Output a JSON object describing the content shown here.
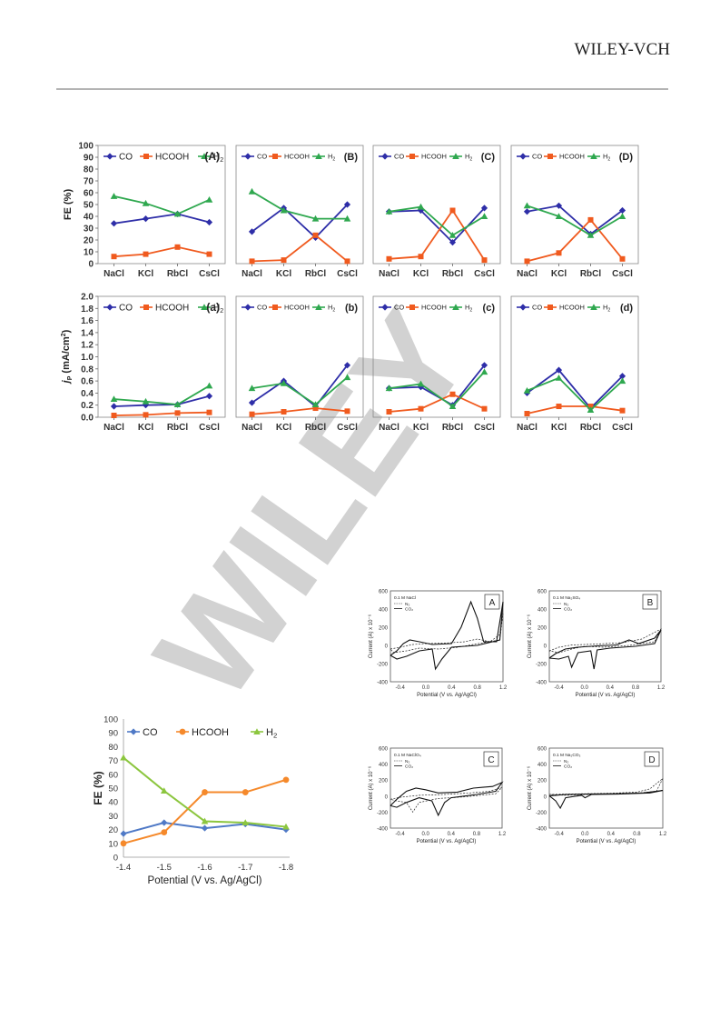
{
  "header": {
    "brand": "WILEY-VCH"
  },
  "watermark": {
    "text": "WILEY",
    "color": "#d2d2d2"
  },
  "colors": {
    "co": "#2e2ea8",
    "hcooh": "#f05a1e",
    "h2": "#2fa84f",
    "co_b": "#4f79c6",
    "hcooh_b": "#f5892b",
    "h2_b": "#8cc63f"
  },
  "chart_data": [
    {
      "type": "line",
      "id": "fe_salts",
      "categories": [
        "NaCl",
        "KCl",
        "RbCl",
        "CsCl"
      ],
      "ylabel": "FE (%)",
      "yticks": [
        "0",
        "10",
        "20",
        "30",
        "40",
        "50",
        "60",
        "70",
        "80",
        "90",
        "100"
      ],
      "ylim": [
        0,
        100
      ],
      "panels": [
        {
          "label": "(A)",
          "legend": [
            "CO",
            "HCOOH",
            "H2"
          ],
          "series": [
            {
              "name": "CO",
              "values": [
                34,
                38,
                42,
                35
              ]
            },
            {
              "name": "HCOOH",
              "values": [
                6,
                8,
                14,
                8
              ]
            },
            {
              "name": "H2",
              "values": [
                57,
                51,
                42,
                54
              ]
            }
          ]
        },
        {
          "label": "(B)",
          "legend": [
            "CO",
            "HCOOH",
            "H2"
          ],
          "series": [
            {
              "name": "CO",
              "values": [
                27,
                47,
                22,
                50
              ]
            },
            {
              "name": "HCOOH",
              "values": [
                2,
                3,
                24,
                2
              ]
            },
            {
              "name": "H2",
              "values": [
                61,
                45,
                38,
                38
              ]
            }
          ]
        },
        {
          "label": "(C)",
          "legend": [
            "CO",
            "HCOOH",
            "H2"
          ],
          "series": [
            {
              "name": "CO",
              "values": [
                44,
                45,
                18,
                47
              ]
            },
            {
              "name": "HCOOH",
              "values": [
                4,
                6,
                45,
                3
              ]
            },
            {
              "name": "H2",
              "values": [
                44,
                48,
                24,
                40
              ]
            }
          ]
        },
        {
          "label": "(D)",
          "legend": [
            "CO",
            "HCOOH",
            "H2"
          ],
          "series": [
            {
              "name": "CO",
              "values": [
                44,
                49,
                25,
                45
              ]
            },
            {
              "name": "HCOOH",
              "values": [
                2,
                9,
                37,
                4
              ]
            },
            {
              "name": "H2",
              "values": [
                49,
                40,
                24,
                40
              ]
            }
          ]
        }
      ]
    },
    {
      "type": "line",
      "id": "jp_salts",
      "categories": [
        "NaCl",
        "KCl",
        "RbCl",
        "CsCl"
      ],
      "ylabel_main": "j",
      "ylabel_sub": "P",
      "ylabel_rest": " (mA/cm",
      "ylabel_sup": "2",
      "ylabel_end": ")",
      "yticks": [
        "0.0",
        "0.2",
        "0.4",
        "0.6",
        "0.8",
        "1.0",
        "1.2",
        "1.4",
        "1.6",
        "1.8",
        "2.0"
      ],
      "ylim": [
        0,
        2.0
      ],
      "panels": [
        {
          "label": "(a)",
          "legend": [
            "CO",
            "HCOOH",
            "H2"
          ],
          "series": [
            {
              "name": "CO",
              "values": [
                0.18,
                0.2,
                0.21,
                0.35
              ]
            },
            {
              "name": "HCOOH",
              "values": [
                0.03,
                0.04,
                0.07,
                0.08
              ]
            },
            {
              "name": "H2",
              "values": [
                0.3,
                0.26,
                0.21,
                0.52
              ]
            }
          ]
        },
        {
          "label": "(b)",
          "legend": [
            "CO",
            "HCOOH",
            "H2"
          ],
          "series": [
            {
              "name": "CO",
              "values": [
                0.24,
                0.6,
                0.18,
                0.86
              ]
            },
            {
              "name": "HCOOH",
              "values": [
                0.05,
                0.09,
                0.15,
                0.1
              ]
            },
            {
              "name": "H2",
              "values": [
                0.48,
                0.56,
                0.21,
                0.66
              ]
            }
          ]
        },
        {
          "label": "(c)",
          "legend": [
            "CO",
            "HCOOH",
            "H2"
          ],
          "series": [
            {
              "name": "CO",
              "values": [
                0.48,
                0.5,
                0.2,
                0.86
              ]
            },
            {
              "name": "HCOOH",
              "values": [
                0.09,
                0.14,
                0.38,
                0.14
              ]
            },
            {
              "name": "H2",
              "values": [
                0.48,
                0.55,
                0.18,
                0.75
              ]
            }
          ]
        },
        {
          "label": "(d)",
          "legend": [
            "CO",
            "HCOOH",
            "H2"
          ],
          "series": [
            {
              "name": "CO",
              "values": [
                0.4,
                0.78,
                0.15,
                0.68
              ]
            },
            {
              "name": "HCOOH",
              "values": [
                0.06,
                0.18,
                0.18,
                0.11
              ]
            },
            {
              "name": "H2",
              "values": [
                0.44,
                0.65,
                0.12,
                0.6
              ]
            }
          ]
        }
      ]
    },
    {
      "type": "line",
      "id": "fe_potential",
      "x": [
        -1.4,
        -1.5,
        -1.6,
        -1.7,
        -1.8
      ],
      "xticks": [
        "-1.4",
        "-1.5",
        "-1.6",
        "-1.7",
        "-1.8"
      ],
      "xlabel": "Potential (V vs. Ag/AgCl)",
      "ylabel": "FE (%)",
      "yticks": [
        "0",
        "10",
        "20",
        "30",
        "40",
        "50",
        "60",
        "70",
        "80",
        "90",
        "100"
      ],
      "ylim": [
        0,
        100
      ],
      "legend": [
        "CO",
        "HCOOH",
        "H2"
      ],
      "series": [
        {
          "name": "CO",
          "values": [
            17,
            25,
            21,
            24,
            20
          ]
        },
        {
          "name": "HCOOH",
          "values": [
            10,
            18,
            47,
            47,
            56
          ]
        },
        {
          "name": "H2",
          "values": [
            72,
            48,
            26,
            25,
            22
          ]
        }
      ]
    },
    {
      "type": "line",
      "id": "cv",
      "xlabel": "Potential (V vs. Ag/AgCl)",
      "ylabel": "Current (A) x 10⁻⁶",
      "xticks": [
        "-0.4",
        "0.0",
        "0.4",
        "0.8",
        "1.2"
      ],
      "xlim": [
        -0.55,
        1.2
      ],
      "yticks": [
        "-400",
        "-200",
        "0",
        "200",
        "400",
        "600"
      ],
      "ylim": [
        -400,
        600
      ],
      "legend_lines": [
        "N₂",
        "CO₂"
      ],
      "panels": [
        {
          "label": "A",
          "electrolyte": "0.1 M NaCl",
          "n2": [
            [
              -0.55,
              -40
            ],
            [
              -0.4,
              -20
            ],
            [
              -0.2,
              10
            ],
            [
              0.0,
              20
            ],
            [
              0.3,
              25
            ],
            [
              0.6,
              40
            ],
            [
              0.8,
              70
            ],
            [
              1.0,
              40
            ],
            [
              1.15,
              120
            ],
            [
              1.2,
              350
            ],
            [
              1.15,
              60
            ],
            [
              0.9,
              30
            ],
            [
              0.5,
              -20
            ],
            [
              0.2,
              -40
            ],
            [
              -0.1,
              -30
            ],
            [
              -0.3,
              -60
            ],
            [
              -0.5,
              -80
            ],
            [
              -0.55,
              -40
            ]
          ],
          "co2": [
            [
              -0.55,
              -110
            ],
            [
              -0.45,
              -60
            ],
            [
              -0.35,
              20
            ],
            [
              -0.25,
              60
            ],
            [
              -0.1,
              40
            ],
            [
              0.1,
              10
            ],
            [
              0.4,
              20
            ],
            [
              0.55,
              200
            ],
            [
              0.7,
              480
            ],
            [
              0.8,
              300
            ],
            [
              0.9,
              40
            ],
            [
              1.1,
              40
            ],
            [
              1.2,
              480
            ],
            [
              1.15,
              60
            ],
            [
              0.8,
              0
            ],
            [
              0.4,
              -20
            ],
            [
              0.25,
              -150
            ],
            [
              0.15,
              -260
            ],
            [
              0.1,
              -40
            ],
            [
              -0.1,
              -60
            ],
            [
              -0.3,
              -120
            ],
            [
              -0.45,
              -150
            ],
            [
              -0.55,
              -110
            ]
          ]
        },
        {
          "label": "B",
          "electrolyte": "0.1 M Na₂SO₄",
          "n2": [
            [
              -0.55,
              -60
            ],
            [
              -0.4,
              -20
            ],
            [
              -0.2,
              5
            ],
            [
              0.2,
              15
            ],
            [
              0.6,
              30
            ],
            [
              0.9,
              70
            ],
            [
              1.2,
              180
            ],
            [
              1.1,
              40
            ],
            [
              0.7,
              0
            ],
            [
              0.3,
              -20
            ],
            [
              0.0,
              -10
            ],
            [
              -0.2,
              -40
            ],
            [
              -0.4,
              -80
            ],
            [
              -0.55,
              -60
            ]
          ],
          "co2": [
            [
              -0.55,
              -140
            ],
            [
              -0.45,
              -90
            ],
            [
              -0.3,
              -40
            ],
            [
              -0.1,
              -20
            ],
            [
              0.2,
              -5
            ],
            [
              0.5,
              5
            ],
            [
              0.7,
              60
            ],
            [
              0.85,
              20
            ],
            [
              1.1,
              80
            ],
            [
              1.2,
              170
            ],
            [
              1.1,
              20
            ],
            [
              0.8,
              -10
            ],
            [
              0.4,
              -30
            ],
            [
              0.2,
              -50
            ],
            [
              0.15,
              -260
            ],
            [
              0.1,
              -60
            ],
            [
              -0.1,
              -80
            ],
            [
              -0.2,
              -240
            ],
            [
              -0.25,
              -120
            ],
            [
              -0.4,
              -150
            ],
            [
              -0.55,
              -140
            ]
          ]
        },
        {
          "label": "C",
          "electrolyte": "0.1 M NaClO₄",
          "n2": [
            [
              -0.55,
              -40
            ],
            [
              -0.4,
              -15
            ],
            [
              -0.1,
              10
            ],
            [
              0.3,
              20
            ],
            [
              0.7,
              40
            ],
            [
              1.0,
              60
            ],
            [
              1.2,
              110
            ],
            [
              1.1,
              30
            ],
            [
              0.6,
              -10
            ],
            [
              0.2,
              -30
            ],
            [
              -0.1,
              -80
            ],
            [
              -0.2,
              -200
            ],
            [
              -0.3,
              -80
            ],
            [
              -0.45,
              -60
            ],
            [
              -0.55,
              -40
            ]
          ],
          "co2": [
            [
              -0.55,
              -120
            ],
            [
              -0.45,
              -40
            ],
            [
              -0.3,
              60
            ],
            [
              -0.15,
              100
            ],
            [
              0.0,
              80
            ],
            [
              0.2,
              40
            ],
            [
              0.5,
              50
            ],
            [
              0.75,
              100
            ],
            [
              0.9,
              110
            ],
            [
              1.05,
              120
            ],
            [
              1.2,
              170
            ],
            [
              1.1,
              60
            ],
            [
              0.8,
              20
            ],
            [
              0.4,
              -20
            ],
            [
              0.3,
              -80
            ],
            [
              0.2,
              -240
            ],
            [
              0.1,
              -60
            ],
            [
              -0.1,
              -20
            ],
            [
              -0.3,
              -80
            ],
            [
              -0.45,
              -140
            ],
            [
              -0.55,
              -120
            ]
          ]
        },
        {
          "label": "D",
          "electrolyte": "0.1 M Na₂CO₃",
          "n2": [
            [
              -0.55,
              20
            ],
            [
              -0.3,
              25
            ],
            [
              0.0,
              30
            ],
            [
              0.4,
              35
            ],
            [
              0.8,
              50
            ],
            [
              1.0,
              90
            ],
            [
              1.2,
              220
            ],
            [
              1.1,
              60
            ],
            [
              0.7,
              30
            ],
            [
              0.3,
              25
            ],
            [
              0.0,
              20
            ],
            [
              -0.3,
              10
            ],
            [
              -0.55,
              20
            ]
          ],
          "co2": [
            [
              -0.55,
              5
            ],
            [
              -0.45,
              10
            ],
            [
              -0.3,
              20
            ],
            [
              0.0,
              25
            ],
            [
              0.5,
              30
            ],
            [
              0.9,
              40
            ],
            [
              1.2,
              70
            ],
            [
              1.0,
              40
            ],
            [
              0.5,
              25
            ],
            [
              0.1,
              20
            ],
            [
              0.0,
              -20
            ],
            [
              -0.05,
              10
            ],
            [
              -0.3,
              -20
            ],
            [
              -0.38,
              -150
            ],
            [
              -0.45,
              -60
            ],
            [
              -0.55,
              5
            ]
          ]
        }
      ]
    }
  ]
}
